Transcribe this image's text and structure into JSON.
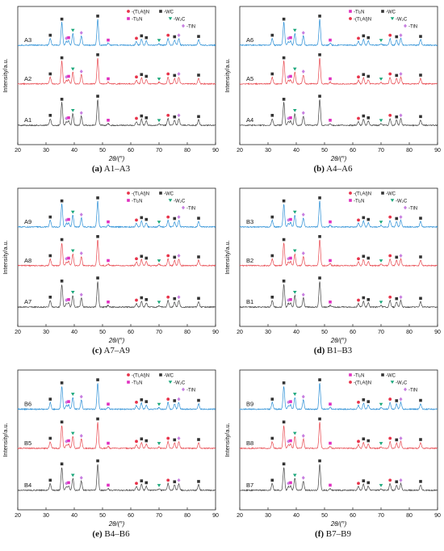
{
  "figure": {
    "x_axis_label": "2θ/(°)",
    "y_axis_label": "Intensity/a.u."
  },
  "chart_data": [
    {
      "id": "a",
      "type": "line",
      "caption_letter": "(a)",
      "caption_text": "A1–A3",
      "xlim": [
        20,
        90
      ],
      "x_ticks": [
        20,
        30,
        40,
        50,
        60,
        70,
        80,
        90
      ],
      "legend_position": "top-right",
      "legend": [
        {
          "symbol": "dot",
          "color": "#e8334a",
          "label": "(Ti,Al)N"
        },
        {
          "symbol": "square",
          "color": "#333333",
          "label": "WC"
        },
        {
          "symbol": "square",
          "color": "#e030c0",
          "label": "Ti₂N"
        },
        {
          "symbol": "triangle",
          "color": "#1aa77a",
          "label": "W₂C"
        },
        {
          "symbol": "diamond",
          "color": "#c77ee0",
          "label": "TiN"
        }
      ],
      "series": [
        {
          "name": "A3",
          "color": "#2b8fd6"
        },
        {
          "name": "A2",
          "color": "#e8484f"
        },
        {
          "name": "A1",
          "color": "#444444"
        }
      ]
    },
    {
      "id": "b",
      "type": "line",
      "caption_letter": "(b)",
      "caption_text": "A4–A6",
      "xlim": [
        20,
        90
      ],
      "x_ticks": [
        20,
        30,
        40,
        50,
        60,
        70,
        80,
        90
      ],
      "legend_position": "top-right",
      "legend": [
        {
          "symbol": "square",
          "color": "#e030c0",
          "label": "Ti₂N"
        },
        {
          "symbol": "square",
          "color": "#333333",
          "label": "WC"
        },
        {
          "symbol": "dot",
          "color": "#e8334a",
          "label": "(Ti,Al)N"
        },
        {
          "symbol": "triangle",
          "color": "#1aa77a",
          "label": "W₂C"
        },
        {
          "symbol": "diamond",
          "color": "#c77ee0",
          "label": "TiN"
        }
      ],
      "series": [
        {
          "name": "A6",
          "color": "#2b8fd6"
        },
        {
          "name": "A5",
          "color": "#e8484f"
        },
        {
          "name": "A4",
          "color": "#444444"
        }
      ]
    },
    {
      "id": "c",
      "type": "line",
      "caption_letter": "(c)",
      "caption_text": "A7–A9",
      "xlim": [
        20,
        90
      ],
      "x_ticks": [
        20,
        30,
        40,
        50,
        60,
        70,
        80,
        90
      ],
      "legend_position": "top-right",
      "legend": [
        {
          "symbol": "dot",
          "color": "#e8334a",
          "label": "(Ti,Al)N"
        },
        {
          "symbol": "square",
          "color": "#333333",
          "label": "WC"
        },
        {
          "symbol": "square",
          "color": "#e030c0",
          "label": "Ti₂N"
        },
        {
          "symbol": "triangle",
          "color": "#1aa77a",
          "label": "W₂C"
        },
        {
          "symbol": "diamond",
          "color": "#c77ee0",
          "label": "TiN"
        }
      ],
      "series": [
        {
          "name": "A9",
          "color": "#2b8fd6"
        },
        {
          "name": "A8",
          "color": "#e8484f"
        },
        {
          "name": "A7",
          "color": "#444444"
        }
      ]
    },
    {
      "id": "d",
      "type": "line",
      "caption_letter": "(d)",
      "caption_text": "B1–B3",
      "xlim": [
        20,
        90
      ],
      "x_ticks": [
        20,
        30,
        40,
        50,
        60,
        70,
        80,
        90
      ],
      "legend_position": "top-right",
      "legend": [
        {
          "symbol": "dot",
          "color": "#e8334a",
          "label": "(Ti,Al)N"
        },
        {
          "symbol": "square",
          "color": "#333333",
          "label": "WC"
        },
        {
          "symbol": "square",
          "color": "#e030c0",
          "label": "Ti₂N"
        },
        {
          "symbol": "triangle",
          "color": "#1aa77a",
          "label": "W₂C"
        },
        {
          "symbol": "diamond",
          "color": "#c77ee0",
          "label": "TiN"
        }
      ],
      "series": [
        {
          "name": "B3",
          "color": "#2b8fd6"
        },
        {
          "name": "B2",
          "color": "#e8484f"
        },
        {
          "name": "B1",
          "color": "#444444"
        }
      ]
    },
    {
      "id": "e",
      "type": "line",
      "caption_letter": "(e)",
      "caption_text": "B4–B6",
      "xlim": [
        20,
        90
      ],
      "x_ticks": [
        20,
        30,
        40,
        50,
        60,
        70,
        80,
        90
      ],
      "legend_position": "top-right",
      "legend": [
        {
          "symbol": "dot",
          "color": "#e8334a",
          "label": "(Ti,Al)N"
        },
        {
          "symbol": "square",
          "color": "#333333",
          "label": "WC"
        },
        {
          "symbol": "square",
          "color": "#e030c0",
          "label": "Ti₂N"
        },
        {
          "symbol": "triangle",
          "color": "#1aa77a",
          "label": "W₂C"
        },
        {
          "symbol": "diamond",
          "color": "#c77ee0",
          "label": "TiN"
        }
      ],
      "series": [
        {
          "name": "B6",
          "color": "#2b8fd6"
        },
        {
          "name": "B5",
          "color": "#e8484f"
        },
        {
          "name": "B4",
          "color": "#444444"
        }
      ]
    },
    {
      "id": "f",
      "type": "line",
      "caption_letter": "(f)",
      "caption_text": "B7–B9",
      "xlim": [
        20,
        90
      ],
      "x_ticks": [
        20,
        30,
        40,
        50,
        60,
        70,
        80,
        90
      ],
      "legend_position": "top-right",
      "legend": [
        {
          "symbol": "square",
          "color": "#e030c0",
          "label": "Ti₂N"
        },
        {
          "symbol": "square",
          "color": "#333333",
          "label": "WC"
        },
        {
          "symbol": "dot",
          "color": "#e8334a",
          "label": "(Ti,Al)N"
        },
        {
          "symbol": "triangle",
          "color": "#1aa77a",
          "label": "W₂C"
        },
        {
          "symbol": "diamond",
          "color": "#c77ee0",
          "label": "TiN"
        }
      ],
      "series": [
        {
          "name": "B9",
          "color": "#2b8fd6"
        },
        {
          "name": "B8",
          "color": "#e8484f"
        },
        {
          "name": "B7",
          "color": "#444444"
        }
      ]
    }
  ],
  "peaks": {
    "positions_2theta": [
      31.5,
      35.6,
      37.2,
      38.0,
      39.5,
      42.5,
      48.3,
      52.0,
      62.0,
      63.8,
      65.5,
      70.0,
      73.2,
      75.5,
      77.0,
      84.0
    ],
    "relative_heights": [
      0.22,
      0.75,
      0.12,
      0.14,
      0.38,
      0.3,
      0.85,
      0.06,
      0.12,
      0.2,
      0.14,
      0.05,
      0.22,
      0.17,
      0.22,
      0.18
    ]
  }
}
